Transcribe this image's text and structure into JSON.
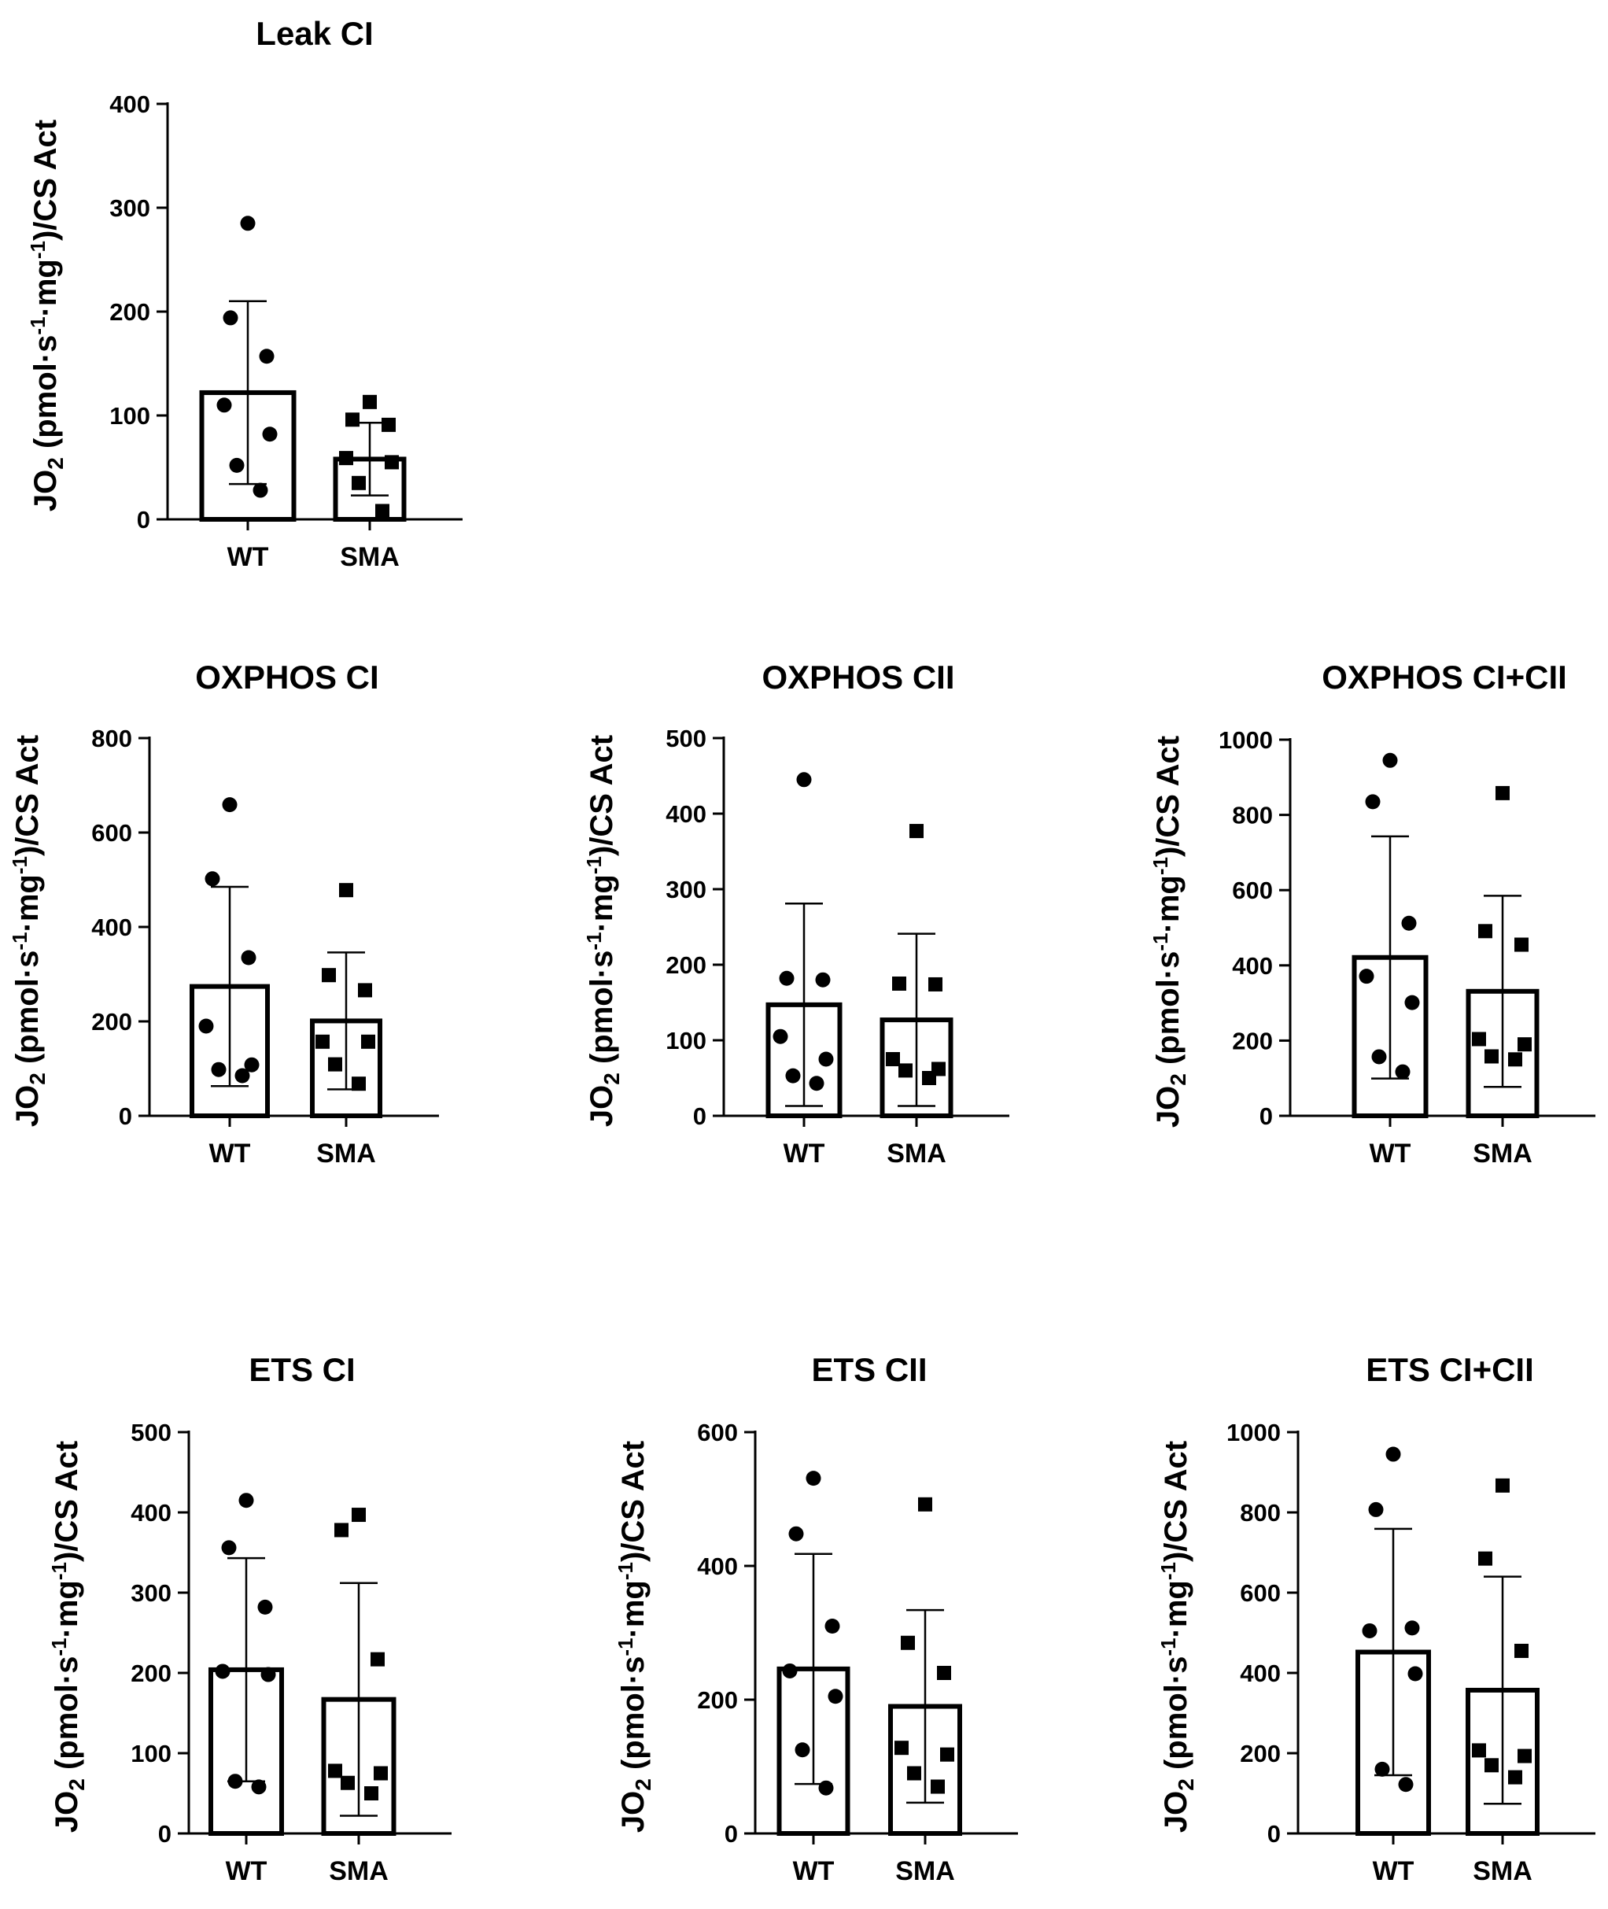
{
  "chart_data": [
    {
      "type": "bar",
      "title": "Leak CI",
      "ylabel": "JO2 (pmol·s-1·mg-1)/CS Act",
      "ylim": [
        0,
        400
      ],
      "yticks": [
        "0",
        "100",
        "200",
        "300",
        "400"
      ],
      "categories": [
        "WT",
        "SMA"
      ],
      "values": [
        122,
        58
      ],
      "errors": [
        88,
        35
      ],
      "points": [
        [
          285,
          194,
          157,
          110,
          82,
          52,
          28
        ],
        [
          113,
          96,
          91,
          59,
          55,
          35,
          8
        ]
      ]
    },
    {
      "type": "bar",
      "title": "OXPHOS CI",
      "ylabel": "JO2 (pmol·s-1·mg-1)/CS Act",
      "ylim": [
        0,
        800
      ],
      "yticks": [
        "0",
        "200",
        "400",
        "600",
        "800"
      ],
      "categories": [
        "WT",
        "SMA"
      ],
      "values": [
        274,
        201
      ],
      "errors": [
        211,
        145
      ],
      "points": [
        [
          659,
          502,
          335,
          190,
          108,
          98,
          85
        ],
        [
          478,
          298,
          266,
          157,
          157,
          109,
          68
        ]
      ]
    },
    {
      "type": "bar",
      "title": "OXPHOS CII",
      "ylabel": "JO2 (pmol·s-1·mg-1)/CS Act",
      "ylim": [
        0,
        500
      ],
      "yticks": [
        "0",
        "100",
        "200",
        "300",
        "400",
        "500"
      ],
      "categories": [
        "WT",
        "SMA"
      ],
      "values": [
        147,
        127
      ],
      "errors": [
        134,
        114
      ],
      "points": [
        [
          445,
          182,
          180,
          105,
          75,
          53,
          43
        ],
        [
          377,
          175,
          174,
          75,
          62,
          60,
          50
        ]
      ]
    },
    {
      "type": "bar",
      "title": "OXPHOS CI+CII",
      "ylabel": "JO2 (pmol·s-1·mg-1)/CS Act",
      "ylim": [
        0,
        1000
      ],
      "yticks": [
        "0",
        "200",
        "400",
        "600",
        "800",
        "1000"
      ],
      "categories": [
        "WT",
        "SMA"
      ],
      "values": [
        421,
        331
      ],
      "errors": [
        322,
        254
      ],
      "points": [
        [
          945,
          835,
          512,
          371,
          301,
          157,
          117
        ],
        [
          858,
          491,
          455,
          204,
          190,
          158,
          150
        ]
      ]
    },
    {
      "type": "bar",
      "title": "ETS CI",
      "ylabel": "JO2 (pmol·s-1·mg-1)/CS Act",
      "ylim": [
        0,
        500
      ],
      "yticks": [
        "0",
        "100",
        "200",
        "300",
        "400",
        "500"
      ],
      "categories": [
        "WT",
        "SMA"
      ],
      "values": [
        204,
        167
      ],
      "errors": [
        139,
        145
      ],
      "points": [
        [
          415,
          356,
          282,
          202,
          198,
          65,
          58
        ],
        [
          397,
          378,
          217,
          78,
          75,
          63,
          50
        ]
      ]
    },
    {
      "type": "bar",
      "title": "ETS CII",
      "ylabel": "JO2 (pmol·s-1·mg-1)/CS Act",
      "ylim": [
        0,
        600
      ],
      "yticks": [
        "0",
        "200",
        "400",
        "600"
      ],
      "categories": [
        "WT",
        "SMA"
      ],
      "values": [
        246,
        190
      ],
      "errors": [
        172,
        144
      ],
      "points": [
        [
          531,
          448,
          310,
          243,
          205,
          125,
          68
        ],
        [
          492,
          285,
          240,
          128,
          118,
          90,
          70
        ]
      ]
    },
    {
      "type": "bar",
      "title": "ETS CI+CII",
      "ylabel": "JO2 (pmol·s-1·mg-1)/CS Act",
      "ylim": [
        0,
        1000
      ],
      "yticks": [
        "0",
        "200",
        "400",
        "600",
        "800",
        "1000"
      ],
      "categories": [
        "WT",
        "SMA"
      ],
      "values": [
        452,
        357
      ],
      "errors": [
        307,
        283
      ],
      "points": [
        [
          945,
          807,
          512,
          505,
          398,
          160,
          122
        ],
        [
          867,
          685,
          455,
          207,
          193,
          170,
          140
        ]
      ]
    }
  ]
}
